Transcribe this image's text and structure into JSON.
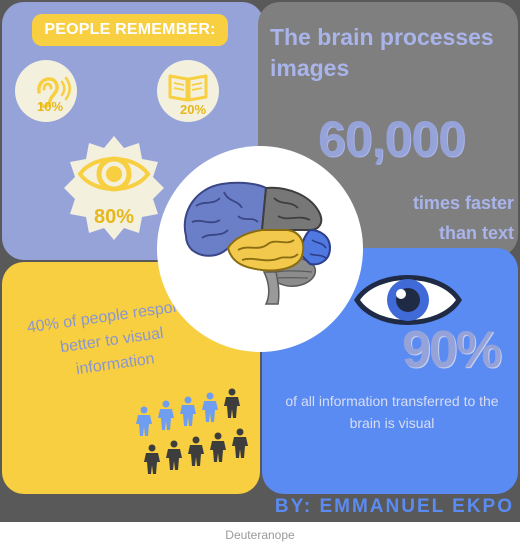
{
  "infographic": {
    "remember_title": "PEOPLE REMEMBER:",
    "hearing": {
      "icon": "ear-icon",
      "percent": "10%"
    },
    "reading": {
      "icon": "book-icon",
      "percent": "20%"
    },
    "seeing": {
      "icon": "eye-icon",
      "percent": "80%"
    },
    "brain_text": "The brain processes images",
    "brain_number": "60,000",
    "brain_text_2_line1": "times faster",
    "brain_text_2_line2": "than text",
    "center_image": "brain-illustration",
    "visual_response_text": "40% of people respond better to visual information",
    "people_icons": {
      "icon": "person-icon",
      "highlighted": 4,
      "total": 10
    },
    "visual_share": "90%",
    "visual_share_text": "of all information transferred to the brain is visual",
    "byline": "BY: EMMANUEL EKPO"
  },
  "caption": "Deuteranope",
  "colors": {
    "lavender": "#96a3d9",
    "gray": "#7f7f7f",
    "yellow": "#f7cf40",
    "blue": "#5a8bf2",
    "dark_border": "#595959",
    "dark_person": "#3d3d3d",
    "blue_person": "#6f9df0"
  }
}
